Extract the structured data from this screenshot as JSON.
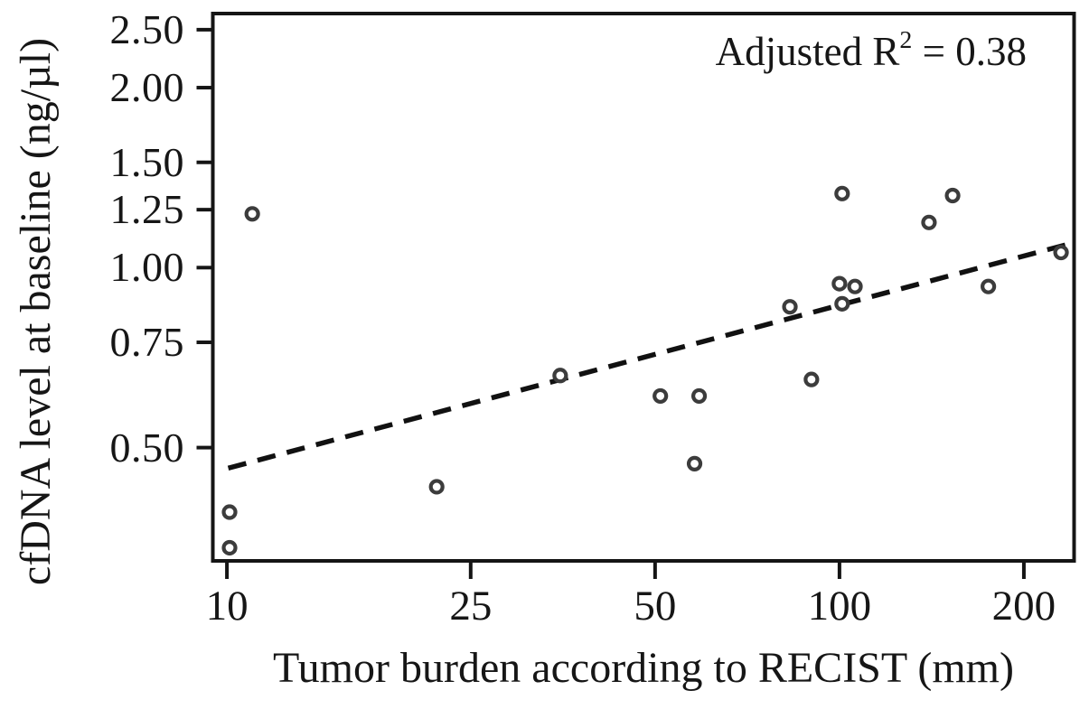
{
  "figure": {
    "x_title": "Tumor burden according to RECIST (mm)",
    "y_title": "cfDNA level at baseline (ng/µl)",
    "annotation": {
      "prefix": "Adjusted R",
      "sup": "2",
      "suffix": " = 0.38"
    }
  },
  "chart_data": {
    "type": "scatter",
    "title": "",
    "xlabel": "Tumor burden according to RECIST (mm)",
    "ylabel": "cfDNA level at baseline (ng/µl)",
    "annotation": "Adjusted R² = 0.38",
    "x_scale": "log",
    "y_scale": "log",
    "xlim": [
      9.42,
      243.2
    ],
    "ylim": [
      0.321,
      2.679
    ],
    "grid": false,
    "x_ticks": [
      {
        "value": 10,
        "label": "10"
      },
      {
        "value": 25,
        "label": "25"
      },
      {
        "value": 50,
        "label": "50"
      },
      {
        "value": 100,
        "label": "100"
      },
      {
        "value": 200,
        "label": "200"
      }
    ],
    "y_ticks": [
      {
        "value": 2.5,
        "label": "2.50"
      },
      {
        "value": 2.0,
        "label": "2.00"
      },
      {
        "value": 1.5,
        "label": "1.50"
      },
      {
        "value": 1.25,
        "label": "1.25"
      },
      {
        "value": 1.0,
        "label": "1.00"
      },
      {
        "value": 0.75,
        "label": "0.75"
      },
      {
        "value": 0.5,
        "label": "0.50"
      }
    ],
    "points": [
      {
        "x": 10.1,
        "y": 0.39
      },
      {
        "x": 10.1,
        "y": 0.34
      },
      {
        "x": 11,
        "y": 1.23
      },
      {
        "x": 22,
        "y": 0.43
      },
      {
        "x": 35,
        "y": 0.66
      },
      {
        "x": 51,
        "y": 0.61
      },
      {
        "x": 59,
        "y": 0.61
      },
      {
        "x": 58,
        "y": 0.47
      },
      {
        "x": 83,
        "y": 0.86
      },
      {
        "x": 90,
        "y": 0.65
      },
      {
        "x": 100,
        "y": 0.94
      },
      {
        "x": 101,
        "y": 0.87
      },
      {
        "x": 106,
        "y": 0.93
      },
      {
        "x": 101,
        "y": 1.33
      },
      {
        "x": 140,
        "y": 1.19
      },
      {
        "x": 153,
        "y": 1.32
      },
      {
        "x": 175,
        "y": 0.93
      },
      {
        "x": 230,
        "y": 1.06
      }
    ],
    "trendline": {
      "style": "dashed",
      "x1": 10.05,
      "y1": 0.462,
      "x2": 243.0,
      "y2": 1.103
    },
    "marker": {
      "shape": "open-circle",
      "stroke": "#3c3c3c",
      "fill": "#ffffff"
    },
    "line_color": "#111111",
    "axis_color": "#151515"
  }
}
